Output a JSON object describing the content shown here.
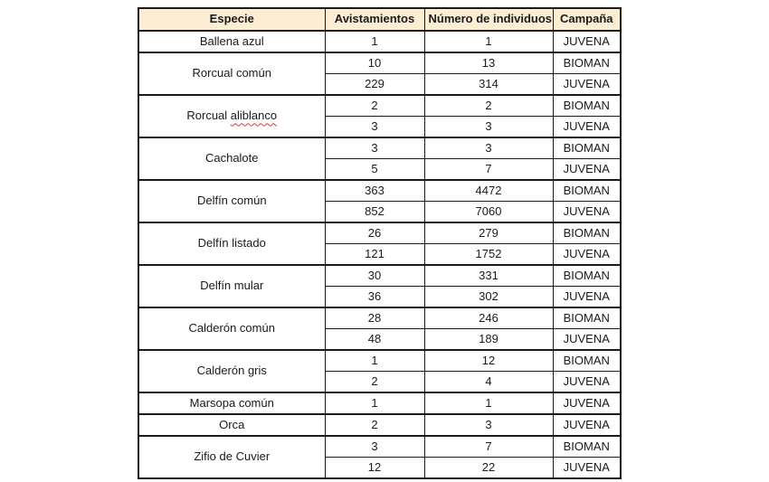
{
  "page": {
    "background_color": "#ffffff"
  },
  "table": {
    "header_bg_color": "#fbeed3",
    "border_color": "#1a1a1a",
    "misspelled_underline_color": "#d43c3c",
    "headers": [
      "Especie",
      "Avistamientos",
      "Número de individuos",
      "Campaña"
    ],
    "groups": [
      {
        "species": "Ballena azul",
        "rows": [
          {
            "avistamientos": "1",
            "num_individuos": "1",
            "campana": "JUVENA"
          }
        ]
      },
      {
        "species": "Rorcual común",
        "rows": [
          {
            "avistamientos": "10",
            "num_individuos": "13",
            "campana": "BIOMAN"
          },
          {
            "avistamientos": "229",
            "num_individuos": "314",
            "campana": "JUVENA"
          }
        ]
      },
      {
        "species": "Rorcual aliblanco",
        "species_prefix": "Rorcual ",
        "species_misspelled": "aliblanco",
        "rows": [
          {
            "avistamientos": "2",
            "num_individuos": "2",
            "campana": "BIOMAN"
          },
          {
            "avistamientos": "3",
            "num_individuos": "3",
            "campana": "JUVENA"
          }
        ]
      },
      {
        "species": "Cachalote",
        "rows": [
          {
            "avistamientos": "3",
            "num_individuos": "3",
            "campana": "BIOMAN"
          },
          {
            "avistamientos": "5",
            "num_individuos": "7",
            "campana": "JUVENA"
          }
        ]
      },
      {
        "species": "Delfín común",
        "rows": [
          {
            "avistamientos": "363",
            "num_individuos": "4472",
            "campana": "BIOMAN"
          },
          {
            "avistamientos": "852",
            "num_individuos": "7060",
            "campana": "JUVENA"
          }
        ]
      },
      {
        "species": "Delfín listado",
        "rows": [
          {
            "avistamientos": "26",
            "num_individuos": "279",
            "campana": "BIOMAN"
          },
          {
            "avistamientos": "121",
            "num_individuos": "1752",
            "campana": "JUVENA"
          }
        ]
      },
      {
        "species": "Delfín mular",
        "rows": [
          {
            "avistamientos": "30",
            "num_individuos": "331",
            "campana": "BIOMAN"
          },
          {
            "avistamientos": "36",
            "num_individuos": "302",
            "campana": "JUVENA"
          }
        ]
      },
      {
        "species": "Calderón común",
        "rows": [
          {
            "avistamientos": "28",
            "num_individuos": "246",
            "campana": "BIOMAN"
          },
          {
            "avistamientos": "48",
            "num_individuos": "189",
            "campana": "JUVENA"
          }
        ]
      },
      {
        "species": "Calderón gris",
        "rows": [
          {
            "avistamientos": "1",
            "num_individuos": "12",
            "campana": "BIOMAN"
          },
          {
            "avistamientos": "2",
            "num_individuos": "4",
            "campana": "JUVENA"
          }
        ]
      },
      {
        "species": "Marsopa común",
        "rows": [
          {
            "avistamientos": "1",
            "num_individuos": "1",
            "campana": "JUVENA"
          }
        ]
      },
      {
        "species": "Orca",
        "rows": [
          {
            "avistamientos": "2",
            "num_individuos": "3",
            "campana": "JUVENA"
          }
        ]
      },
      {
        "species": "Zifio de Cuvier",
        "rows": [
          {
            "avistamientos": "3",
            "num_individuos": "7",
            "campana": "BIOMAN"
          },
          {
            "avistamientos": "12",
            "num_individuos": "22",
            "campana": "JUVENA"
          }
        ]
      }
    ]
  }
}
